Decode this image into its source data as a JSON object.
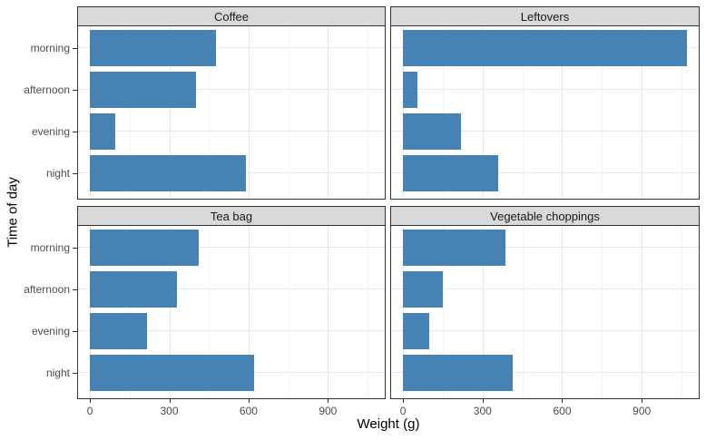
{
  "chart_data": {
    "type": "bar",
    "orientation": "horizontal",
    "title": "",
    "xlabel": "Weight (g)",
    "ylabel": "Time of day",
    "categories": [
      "morning",
      "afternoon",
      "evening",
      "night"
    ],
    "x_ticks": [
      0,
      300,
      600,
      900
    ],
    "x_minor_gridlines": [
      150,
      450,
      750,
      1050
    ],
    "xlim": [
      -45,
      1115
    ],
    "grid": true,
    "legend_position": "none",
    "facets": [
      {
        "label": "Coffee",
        "values": [
          475,
          400,
          95,
          590
        ]
      },
      {
        "label": "Leftovers",
        "values": [
          1070,
          55,
          220,
          360
        ]
      },
      {
        "label": "Tea bag",
        "values": [
          410,
          330,
          215,
          620
        ]
      },
      {
        "label": "Vegetable choppings",
        "values": [
          385,
          150,
          100,
          415
        ]
      }
    ],
    "colors": {
      "bar": "#4682B4",
      "strip_background": "#D9D9D9",
      "strip_border": "#333333",
      "panel_border": "#333333",
      "grid_major": "#E7E7E7",
      "grid_minor": "#F4F4F4",
      "tick_label_text": "#4D4D4D",
      "axis_title_text": "#000000"
    }
  }
}
